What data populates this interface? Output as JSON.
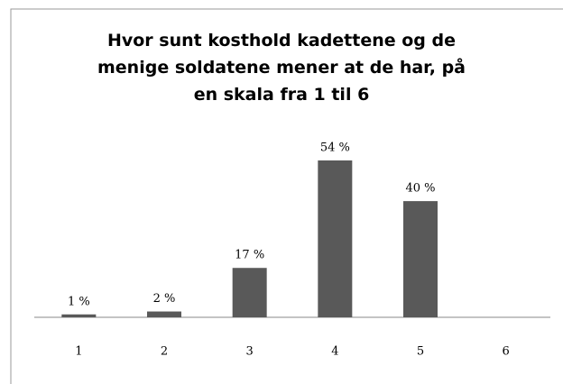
{
  "chart_data": {
    "type": "bar",
    "title": "Hvor sunt kosthold kadettene og de menige soldatene mener at de har, på en skala fra 1 til 6",
    "categories": [
      "1",
      "2",
      "3",
      "4",
      "5",
      "6"
    ],
    "values": [
      1,
      2,
      17,
      54,
      40,
      null
    ],
    "value_labels": [
      "1 %",
      "2 %",
      "17 %",
      "54 %",
      "40 %",
      null
    ],
    "color": "#595959"
  }
}
